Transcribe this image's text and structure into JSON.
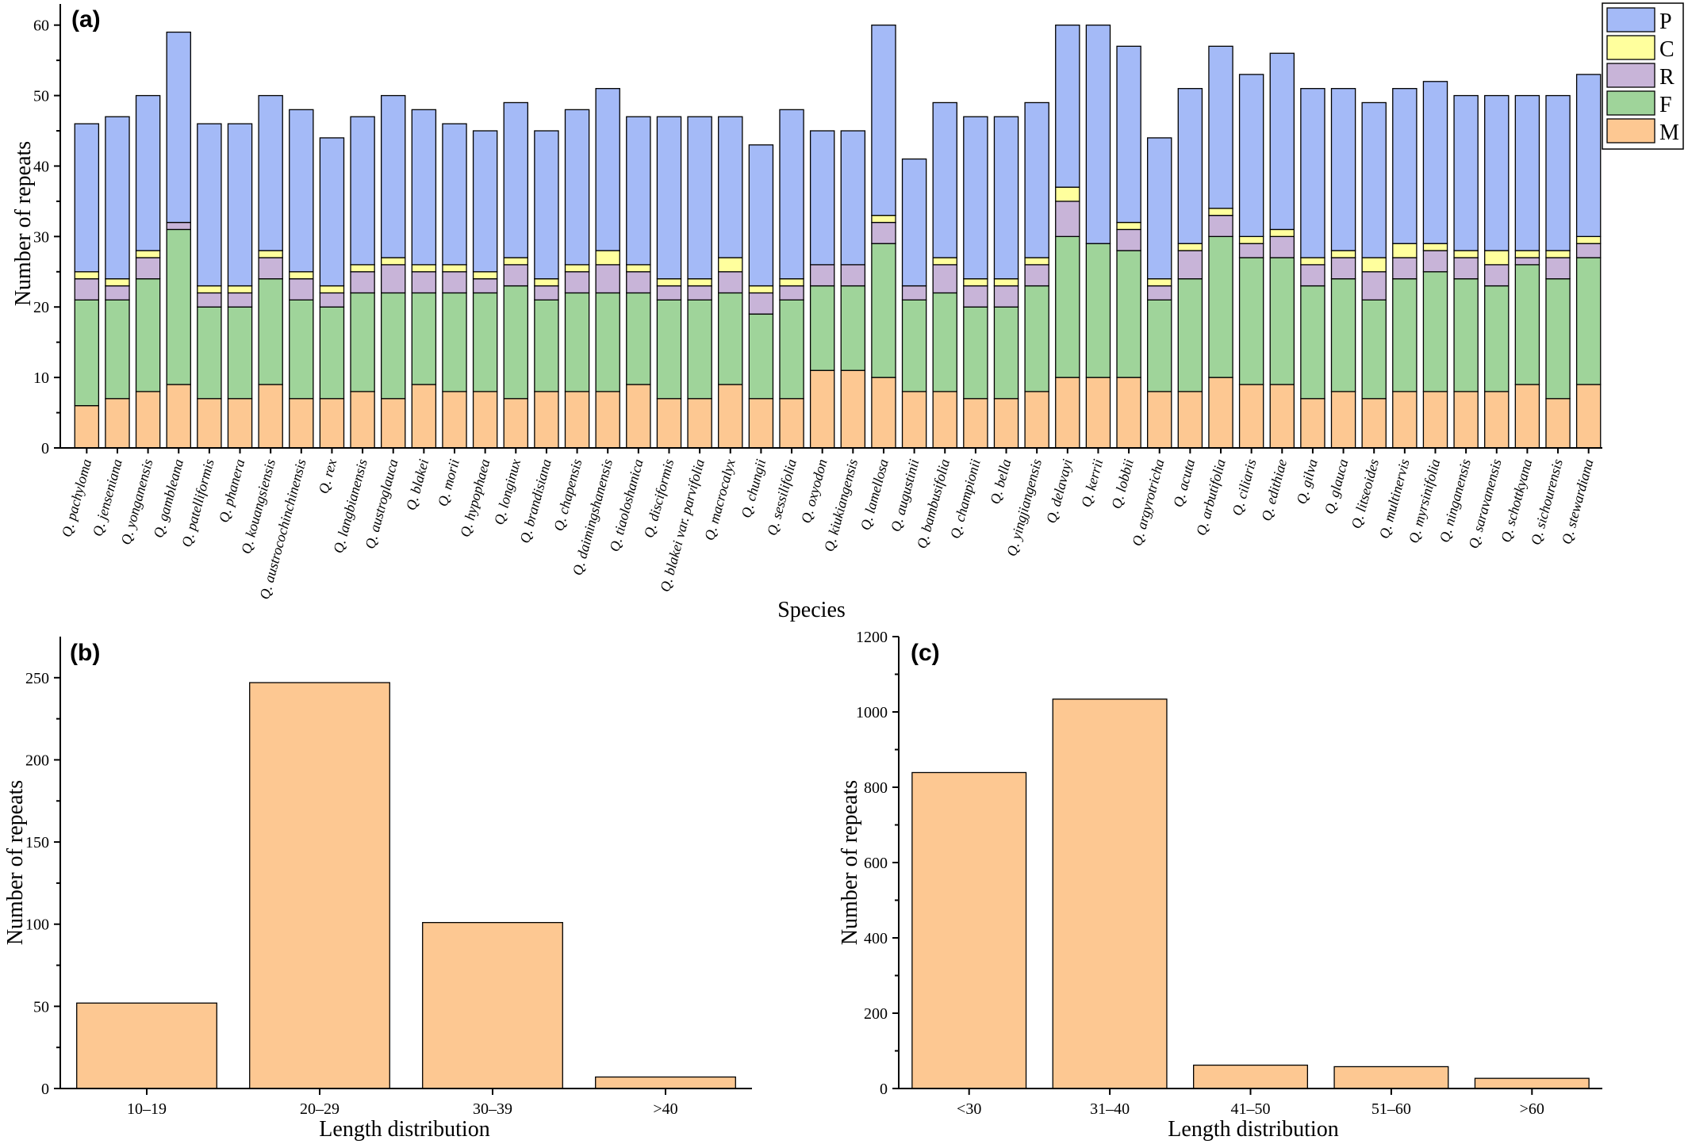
{
  "chart_data": [
    {
      "panel": "(a)",
      "type": "bar",
      "stacked": true,
      "xlabel": "Species",
      "ylabel": "Number of repeats",
      "ylim": [
        0,
        63
      ],
      "yticks": [
        0,
        10,
        20,
        30,
        40,
        50,
        60
      ],
      "legend_position": "top-right",
      "categories": [
        "Q. pachyloma",
        "Q. jenseniana",
        "Q. yonganensis",
        "Q. gambleana",
        "Q. patelliformis",
        "Q. phanera",
        "Q. kouangsiensis",
        "Q. austrocochinchinensis",
        "Q. rex",
        "Q. langbianensis",
        "Q. austroglauca",
        "Q. blakei",
        "Q. morii",
        "Q. hypophaea",
        "Q. longinux",
        "Q. brandisiana",
        "Q. chapensis",
        "Q. daimingshanensis",
        "Q. tiaoloshanica",
        "Q. disciformis",
        "Q. blakei var. parvifolia",
        "Q. macrocalyx",
        "Q. chungii",
        "Q. sessilifolia",
        "Q. oxyodon",
        "Q. kiukiangensis",
        "Q. lamellosa",
        "Q. augustinii",
        "Q. bambusifolia",
        "Q. championii",
        "Q. bella",
        "Q. yingjiangensis",
        "Q. delavayi",
        "Q. kerrii",
        "Q. lobbii",
        "Q. argyrotricha",
        "Q. acuta",
        "Q. arbutifolia",
        "Q. ciliaris",
        "Q. edithiae",
        "Q. gilva",
        "Q. glauca",
        "Q. litseoides",
        "Q. multinervis",
        "Q. myrsinifolia",
        "Q. ninganensis",
        "Q. saravanensis",
        "Q. schottkyana",
        "Q. sichourensis",
        "Q. stewardiana"
      ],
      "series": [
        {
          "name": "M",
          "color": "#fdc892",
          "values": [
            6,
            7,
            8,
            9,
            7,
            7,
            9,
            7,
            7,
            8,
            7,
            9,
            8,
            8,
            7,
            8,
            8,
            8,
            9,
            7,
            7,
            9,
            7,
            7,
            11,
            11,
            10,
            8,
            8,
            7,
            7,
            8,
            10,
            10,
            10,
            8,
            8,
            10,
            9,
            9,
            7,
            8,
            7,
            8,
            8,
            8,
            8,
            9,
            7,
            9
          ]
        },
        {
          "name": "F",
          "color": "#9fd49a",
          "values": [
            15,
            14,
            16,
            22,
            13,
            13,
            15,
            14,
            13,
            14,
            15,
            13,
            14,
            14,
            16,
            13,
            14,
            14,
            13,
            14,
            14,
            13,
            12,
            14,
            12,
            12,
            19,
            13,
            14,
            13,
            13,
            15,
            20,
            19,
            18,
            13,
            16,
            20,
            18,
            18,
            16,
            16,
            14,
            16,
            17,
            16,
            15,
            17,
            17,
            18
          ]
        },
        {
          "name": "R",
          "color": "#c8b4d8",
          "values": [
            3,
            2,
            3,
            1,
            2,
            2,
            3,
            3,
            2,
            3,
            4,
            3,
            3,
            2,
            3,
            2,
            3,
            4,
            3,
            2,
            2,
            3,
            3,
            2,
            3,
            3,
            3,
            2,
            4,
            3,
            3,
            3,
            5,
            0,
            3,
            2,
            4,
            3,
            2,
            3,
            3,
            3,
            4,
            3,
            3,
            3,
            3,
            1,
            3,
            2
          ]
        },
        {
          "name": "C",
          "color": "#ffff9d",
          "values": [
            1,
            1,
            1,
            0,
            1,
            1,
            1,
            1,
            1,
            1,
            1,
            1,
            1,
            1,
            1,
            1,
            1,
            2,
            1,
            1,
            1,
            2,
            1,
            1,
            0,
            0,
            1,
            0,
            1,
            1,
            1,
            1,
            2,
            0,
            1,
            1,
            1,
            1,
            1,
            1,
            1,
            1,
            2,
            2,
            1,
            1,
            2,
            1,
            1,
            1
          ]
        },
        {
          "name": "P",
          "color": "#a4baf7",
          "values": [
            21,
            23,
            22,
            27,
            23,
            23,
            22,
            23,
            21,
            21,
            23,
            22,
            20,
            20,
            22,
            21,
            22,
            23,
            21,
            23,
            23,
            20,
            20,
            24,
            19,
            19,
            27,
            18,
            22,
            23,
            23,
            22,
            23,
            31,
            25,
            20,
            22,
            23,
            23,
            25,
            24,
            23,
            22,
            22,
            23,
            22,
            22,
            22,
            22,
            23
          ]
        }
      ]
    },
    {
      "panel": "(b)",
      "type": "bar",
      "xlabel": "Length distribution",
      "ylabel": "Number of repeats",
      "ylim": [
        0,
        275
      ],
      "yticks": [
        0,
        50,
        100,
        150,
        200,
        250
      ],
      "color": "#fdc892",
      "categories": [
        "10–19",
        "20–29",
        "30–39",
        ">40"
      ],
      "values": [
        52,
        247,
        101,
        7
      ]
    },
    {
      "panel": "(c)",
      "type": "bar",
      "xlabel": "Length distribution",
      "ylabel": "Number of repeats",
      "ylim": [
        0,
        1200
      ],
      "yticks": [
        0,
        200,
        400,
        600,
        800,
        1000,
        1200
      ],
      "color": "#fdc892",
      "categories": [
        "<30",
        "31–40",
        "41–50",
        "51–60",
        ">60"
      ],
      "values": [
        839,
        1034,
        62,
        58,
        27
      ]
    }
  ]
}
